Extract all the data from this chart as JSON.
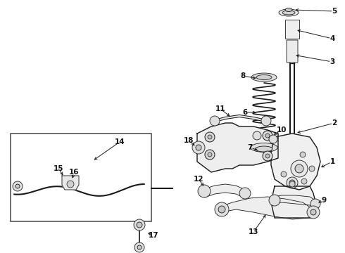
{
  "background_color": "#ffffff",
  "line_color": "#1a1a1a",
  "label_color": "#111111",
  "fig_width": 4.9,
  "fig_height": 3.6,
  "dpi": 100
}
